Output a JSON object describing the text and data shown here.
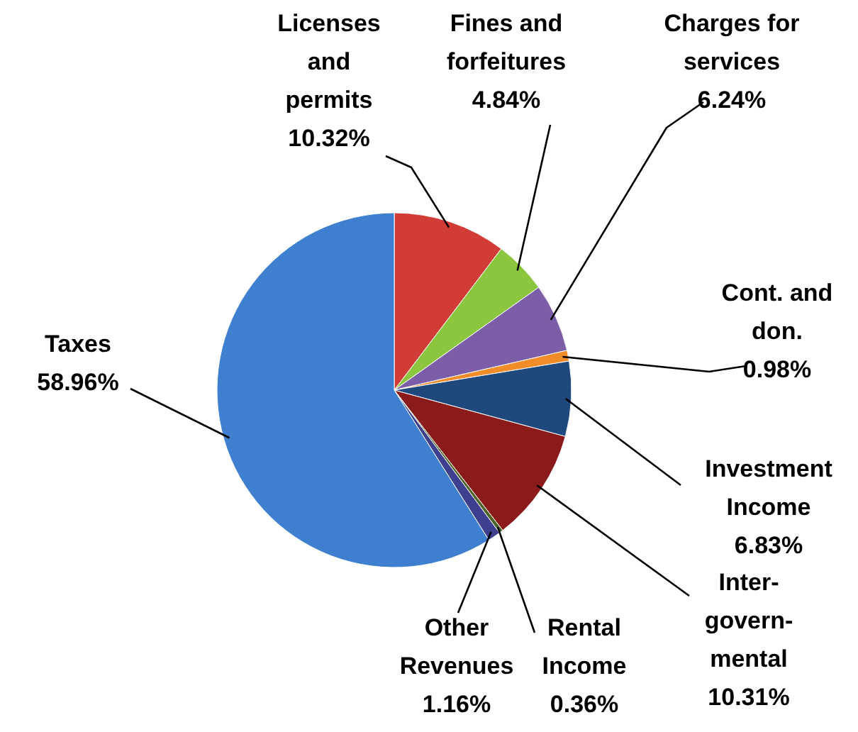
{
  "chart_data": {
    "type": "pie",
    "categories": [
      "Licenses\nand\npermits",
      "Fines and\nforfeitures",
      "Charges for\nservices",
      "Cont. and\ndon.",
      "Investment\nIncome",
      "Inter-\ngovern-\nmental",
      "Rental\nIncome",
      "Other\nRevenues",
      "Taxes"
    ],
    "values": [
      10.32,
      4.84,
      6.24,
      0.98,
      6.83,
      10.31,
      0.36,
      1.16,
      58.96
    ],
    "value_labels": [
      "10.32%",
      "4.84%",
      "6.24%",
      "0.98%",
      "6.83%",
      "10.31%",
      "0.36%",
      "1.16%",
      "58.96%"
    ],
    "colors": [
      "#d23c36",
      "#8cc63f",
      "#7b5ea7",
      "#f28c28",
      "#1f497d",
      "#8b1a1a",
      "#4f6228",
      "#3f3f8f",
      "#3f7fcf"
    ]
  }
}
